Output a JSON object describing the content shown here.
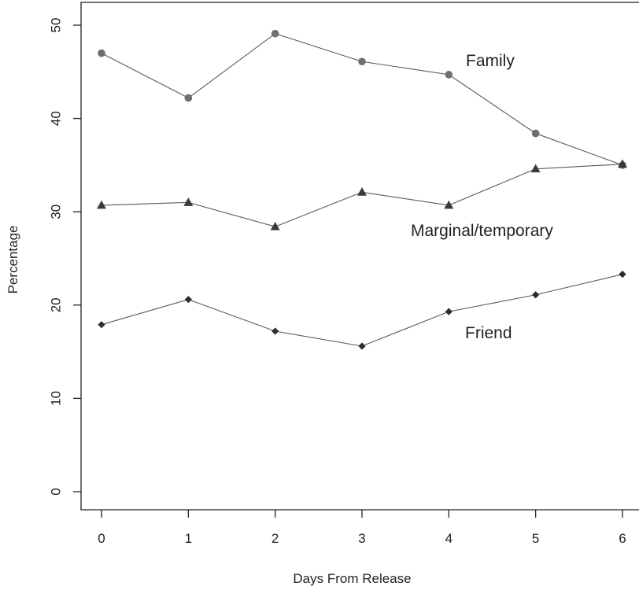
{
  "chart_data": {
    "type": "line",
    "title": "",
    "xlabel": "Days From Release",
    "ylabel": "Percentage",
    "x": [
      0,
      1,
      2,
      3,
      4,
      5,
      6
    ],
    "xlim": [
      0,
      6
    ],
    "ylim": [
      0,
      50
    ],
    "xticks": [
      "0",
      "1",
      "2",
      "3",
      "4",
      "5",
      "6"
    ],
    "yticks": [
      "0",
      "10",
      "20",
      "30",
      "40",
      "50"
    ],
    "grid": false,
    "legend": "none",
    "series": [
      {
        "name": "Family",
        "marker": "circle",
        "color": "#6e6e6e",
        "values": [
          47.0,
          42.2,
          49.1,
          46.1,
          44.7,
          38.4,
          35.0
        ]
      },
      {
        "name": "Marginal/temporary",
        "marker": "triangle",
        "color": "#3a3a3a",
        "values": [
          30.7,
          31.0,
          28.4,
          32.1,
          30.7,
          34.6,
          35.1
        ]
      },
      {
        "name": "Friend",
        "marker": "diamond",
        "color": "#2c2c2c",
        "values": [
          17.9,
          20.6,
          17.2,
          15.6,
          19.3,
          21.1,
          23.3
        ]
      }
    ]
  }
}
